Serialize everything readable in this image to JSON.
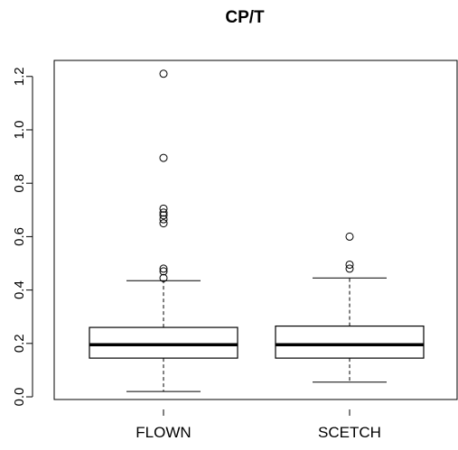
{
  "chart_data": {
    "type": "boxplot",
    "title": "CP/T",
    "xlabel": "",
    "ylabel": "",
    "ylim": [
      -0.01,
      1.26
    ],
    "y_ticks": [
      "0.0",
      "0.2",
      "0.4",
      "0.6",
      "0.8",
      "1.0",
      "1.2"
    ],
    "y_tick_values": [
      0.0,
      0.2,
      0.4,
      0.6,
      0.8,
      1.0,
      1.2
    ],
    "grid": false,
    "categories": [
      "FLOWN",
      "SCETCH"
    ],
    "boxes": [
      {
        "category": "FLOWN",
        "whisker_low": 0.02,
        "q1": 0.145,
        "median": 0.195,
        "q3": 0.26,
        "whisker_high": 0.435,
        "outliers": [
          0.445,
          0.47,
          0.48,
          0.65,
          0.665,
          0.68,
          0.69,
          0.705,
          0.895,
          1.21
        ]
      },
      {
        "category": "SCETCH",
        "whisker_low": 0.055,
        "q1": 0.145,
        "median": 0.195,
        "q3": 0.265,
        "whisker_high": 0.445,
        "outliers": [
          0.48,
          0.495,
          0.6
        ]
      }
    ]
  }
}
